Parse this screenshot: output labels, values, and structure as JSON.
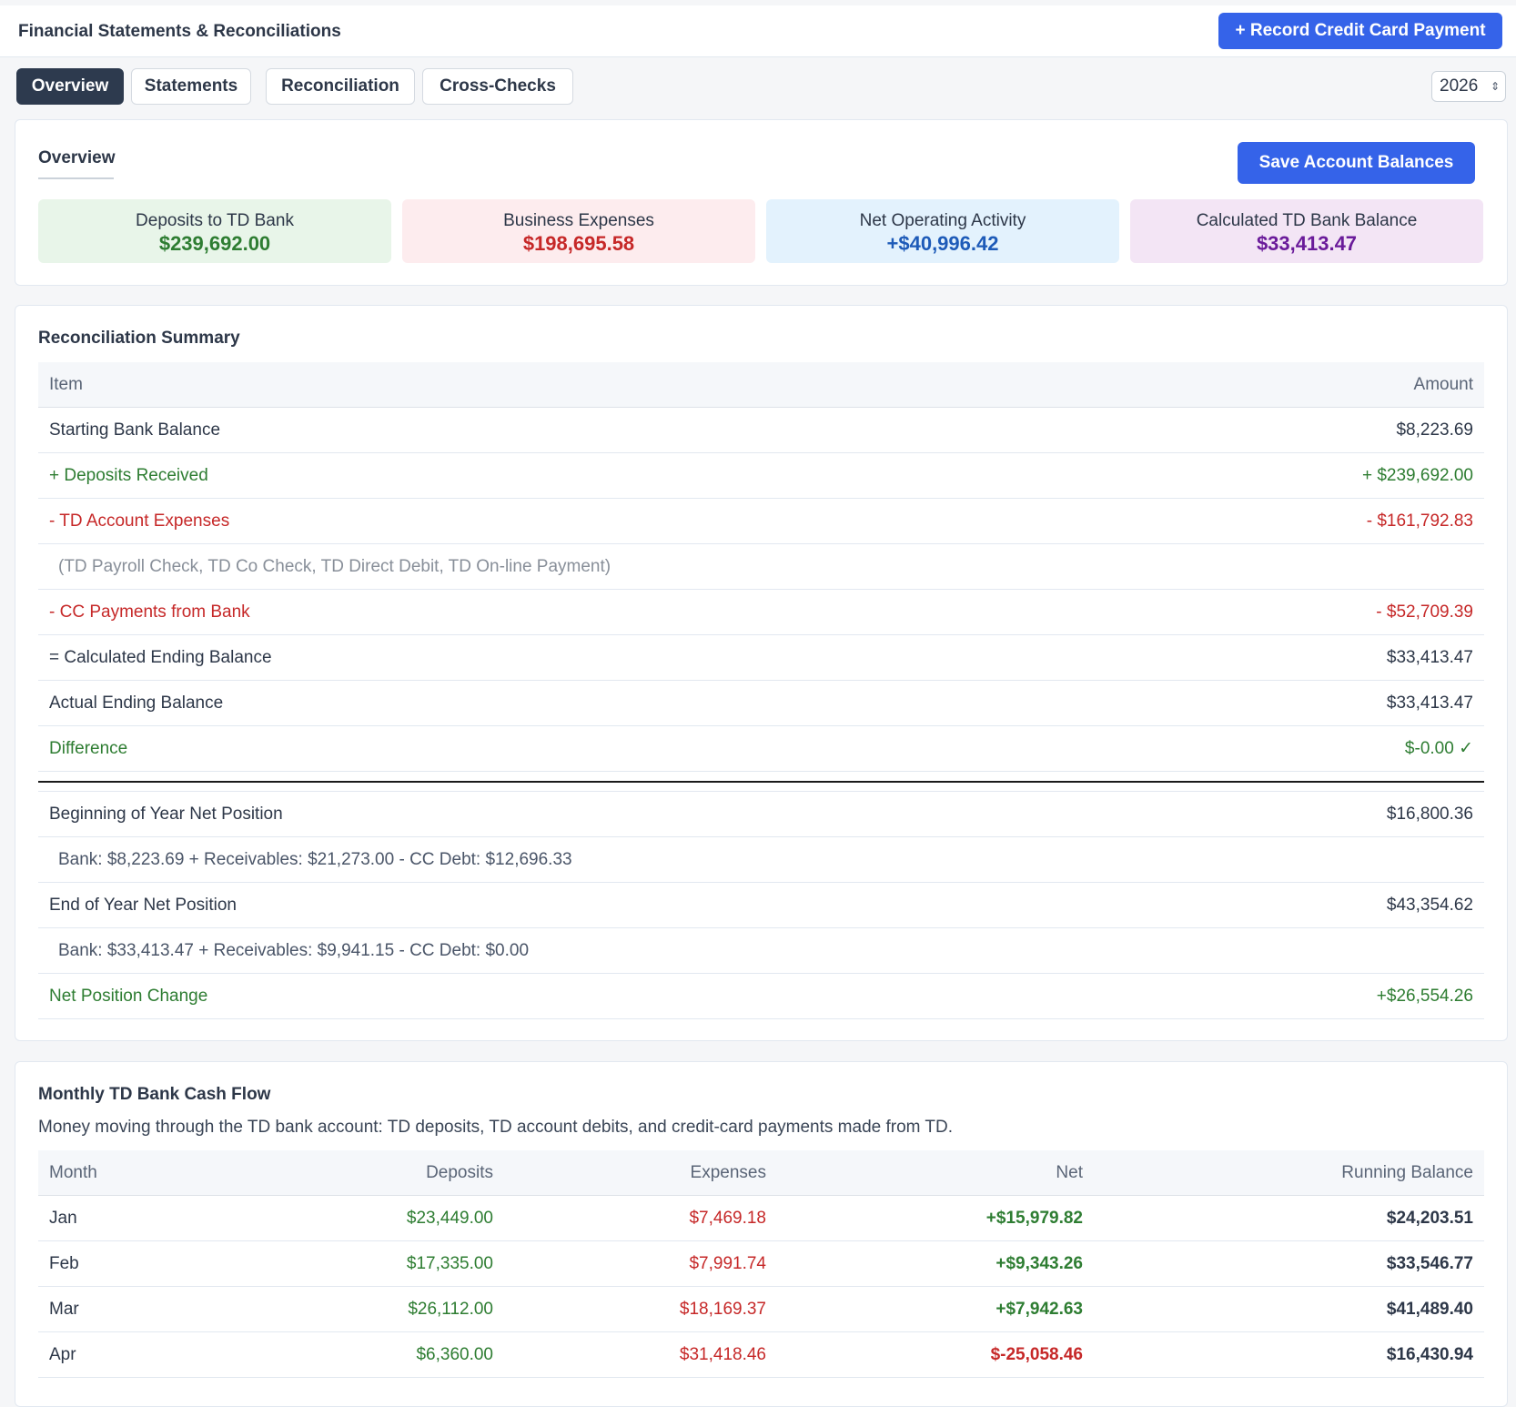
{
  "app": {
    "title": "Financial Statements & Reconciliations",
    "record_button": "+ Record Credit Card Payment"
  },
  "tabs": [
    {
      "label": "Overview",
      "active": true
    },
    {
      "label": "Statements",
      "active": false
    },
    {
      "label": "Reconciliation",
      "active": false
    },
    {
      "label": "Cross-Checks",
      "active": false
    }
  ],
  "year": "2026",
  "overview": {
    "heading": "Overview",
    "save_button": "Save Account Balances",
    "stats": [
      {
        "label": "Deposits to TD Bank",
        "value": "$239,692.00",
        "color": "#2e7d32"
      },
      {
        "label": "Business Expenses",
        "value": "$198,695.58",
        "color": "#c62828"
      },
      {
        "label": "Net Operating Activity",
        "value": "+$40,996.42",
        "color": "#1e5bb8"
      },
      {
        "label": "Calculated TD Bank Balance",
        "value": "$33,413.47",
        "color": "#6a1b9a"
      }
    ]
  },
  "reconciliation": {
    "title": "Reconciliation Summary",
    "headers": {
      "item": "Item",
      "amount": "Amount"
    },
    "rows": [
      {
        "item": "Starting Bank Balance",
        "amount": "$8,223.69"
      },
      {
        "item": "+ Deposits Received",
        "amount": "+ $239,692.00"
      },
      {
        "item": "- TD Account Expenses",
        "amount": "- $161,792.83"
      },
      {
        "item": "(TD Payroll Check, TD Co Check, TD Direct Debit, TD On-line Payment)",
        "amount": ""
      },
      {
        "item": "- CC Payments from Bank",
        "amount": "- $52,709.39"
      },
      {
        "item": "= Calculated Ending Balance",
        "amount": "$33,413.47"
      },
      {
        "item": "Actual Ending Balance",
        "amount": "$33,413.47"
      },
      {
        "item": "Difference",
        "amount": "$-0.00 ✓"
      }
    ],
    "position_rows": [
      {
        "item": "Beginning of Year Net Position",
        "amount": "$16,800.36"
      },
      {
        "item": "Bank: $8,223.69 + Receivables: $21,273.00 - CC Debt: $12,696.33",
        "amount": ""
      },
      {
        "item": "End of Year Net Position",
        "amount": "$43,354.62"
      },
      {
        "item": "Bank: $33,413.47 + Receivables: $9,941.15 - CC Debt: $0.00",
        "amount": ""
      },
      {
        "item": "Net Position Change",
        "amount": "+$26,554.26"
      }
    ]
  },
  "cashflow": {
    "title": "Monthly TD Bank Cash Flow",
    "description": "Money moving through the TD bank account: TD deposits, TD account debits, and credit-card payments made from TD.",
    "headers": {
      "month": "Month",
      "deposits": "Deposits",
      "expenses": "Expenses",
      "net": "Net",
      "running": "Running Balance"
    },
    "rows": [
      {
        "month": "Jan",
        "deposits": "$23,449.00",
        "expenses": "$7,469.18",
        "net": "+$15,979.82",
        "running": "$24,203.51"
      },
      {
        "month": "Feb",
        "deposits": "$17,335.00",
        "expenses": "$7,991.74",
        "net": "+$9,343.26",
        "running": "$33,546.77"
      },
      {
        "month": "Mar",
        "deposits": "$26,112.00",
        "expenses": "$18,169.37",
        "net": "+$7,942.63",
        "running": "$41,489.40"
      },
      {
        "month": "Apr",
        "deposits": "$6,360.00",
        "expenses": "$31,418.46",
        "net": "$-25,058.46",
        "running": "$16,430.94"
      }
    ]
  }
}
